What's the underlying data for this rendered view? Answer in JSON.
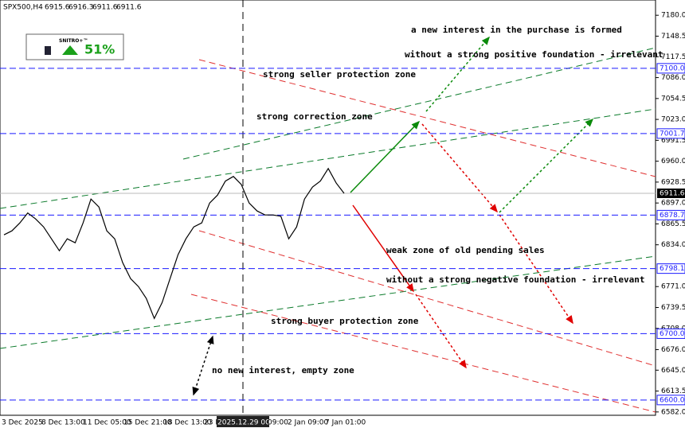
{
  "chart_data": {
    "type": "line",
    "title": "SPX500,H4",
    "last_bar": {
      "open": 6915.6,
      "high": 6916.3,
      "low": 6911.6,
      "close": 6911.6
    },
    "indicator": {
      "name": "SNITRO+™",
      "value": 51,
      "value_label": "51%"
    },
    "color": "#000000",
    "values": [
      6849,
      6855,
      6867,
      6882,
      6873,
      6861,
      6843,
      6825,
      6843,
      6837,
      6867,
      6903,
      6891,
      6855,
      6843,
      6807,
      6783,
      6771,
      6753,
      6723,
      6747,
      6783,
      6819,
      6843,
      6861,
      6867,
      6897,
      6909,
      6930,
      6937,
      6925,
      6897,
      6885,
      6879,
      6879,
      6877,
      6843,
      6861,
      6903,
      6921,
      6930,
      6949,
      6927,
      6911.6
    ],
    "ylim": [
      6577,
      7203
    ],
    "yticks": [
      {
        "value": 7180,
        "label": "7180.0"
      },
      {
        "value": 7148.5,
        "label": "7148.5"
      },
      {
        "value": 7117.5,
        "label": "7117.5"
      },
      {
        "value": 7086,
        "label": "7086.0"
      },
      {
        "value": 7054.5,
        "label": "7054.5"
      },
      {
        "value": 7023,
        "label": "7023.0"
      },
      {
        "value": 6991.5,
        "label": "6991.5"
      },
      {
        "value": 6960,
        "label": "6960.0"
      },
      {
        "value": 6928.5,
        "label": "6928.5"
      },
      {
        "value": 6897,
        "label": "6897.0"
      },
      {
        "value": 6865.5,
        "label": "6865.5"
      },
      {
        "value": 6834,
        "label": "6834.0"
      },
      {
        "value": 6771,
        "label": "6771.0"
      },
      {
        "value": 6739.5,
        "label": "6739.5"
      },
      {
        "value": 6708,
        "label": "6708.0"
      },
      {
        "value": 6676,
        "label": "6676.0"
      },
      {
        "value": 6645,
        "label": "6645.0"
      },
      {
        "value": 6613.5,
        "label": "6613.5"
      },
      {
        "value": 6582,
        "label": "6582.0"
      }
    ],
    "levels": [
      {
        "value": 7100,
        "label": "7100.0"
      },
      {
        "value": 7001.7,
        "label": "7001.7"
      },
      {
        "value": 6878.7,
        "label": "6878.7"
      },
      {
        "value": 6798.1,
        "label": "6798.1"
      },
      {
        "value": 6700,
        "label": "6700.0"
      },
      {
        "value": 6600,
        "label": "6600.0"
      }
    ],
    "level_color": "#1a1aff",
    "current_price": {
      "value": 6911.6,
      "label": "6911.6"
    },
    "x_labels": [
      "3 Dec 2025",
      "8 Dec 13:00",
      "11 Dec 05:00",
      "15 Dec 21:00",
      "18 Dec 13:00",
      "23 D",
      "2025.12.29 00:00",
      "09:00",
      "2 Jan 09:00",
      "7 Jan 01:00"
    ],
    "annotations": [
      "a new interest in the purchase is formed",
      "without a strong positive foundation - irrelevant",
      "strong seller protection zone",
      "strong correction zone",
      "weak zone of old pending sales",
      "without a strong negative foundation - irrelevant",
      "strong buyer protection zone",
      "no new interest, empty zone"
    ]
  }
}
